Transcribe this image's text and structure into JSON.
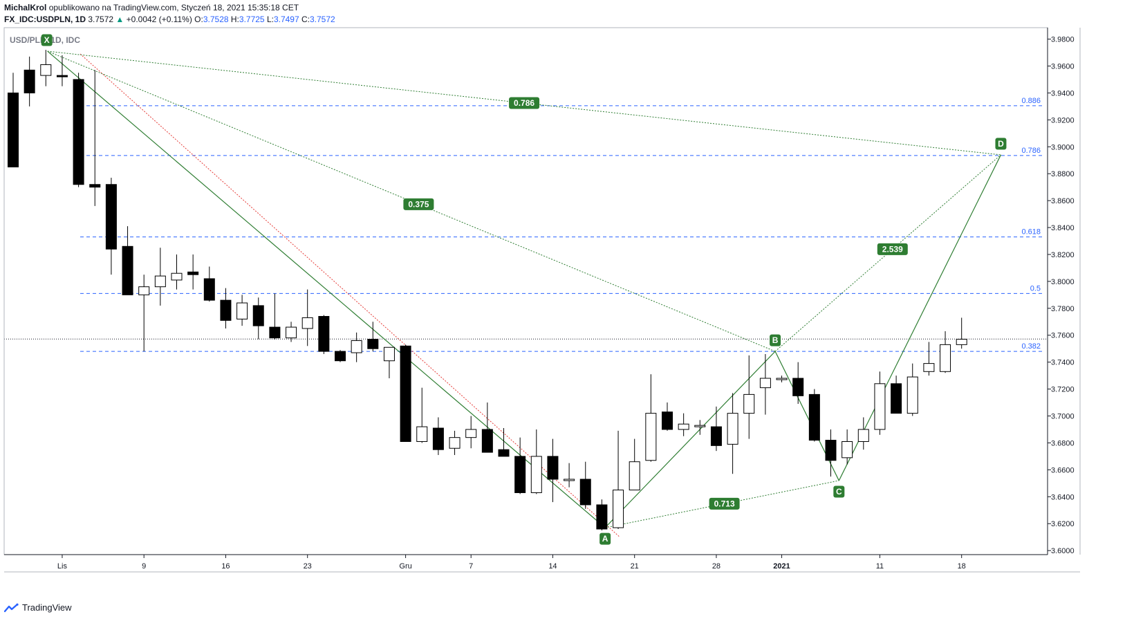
{
  "header": {
    "author": "MichalKrol",
    "published_on": "opublikowano na TradingView.com, Styczeń 18, 2021 15:35:18 CET",
    "symbol": "FX_IDC:USDPLN, 1D",
    "last": "3.7572",
    "change": "+0.0042 (+0.11%)",
    "o_label": "O:",
    "o": "3.7528",
    "h_label": "H:",
    "h": "3.7725",
    "l_label": "L:",
    "l": "3.7497",
    "c_label": "C:",
    "c": "3.7572",
    "arrow_icon": "triangle-up-icon"
  },
  "footer": {
    "brand": "TradingView",
    "logo_icon": "tradingview-logo-icon"
  },
  "colors": {
    "pattern": "#2e7d32",
    "fib": "#2962ff",
    "trend": "#e53935",
    "up_fill": "#ffffff",
    "down_fill": "#000000",
    "axis_text": "#131722"
  },
  "chart_data": {
    "type": "candlestick",
    "title": "USD/PLN, 1D, IDC",
    "ylim": [
      3.597,
      3.9885
    ],
    "y_ticks": [
      "3.9800",
      "3.9600",
      "3.9400",
      "3.9200",
      "3.9000",
      "3.8800",
      "3.8600",
      "3.8400",
      "3.8200",
      "3.8000",
      "3.7800",
      "3.7600",
      "3.7400",
      "3.7200",
      "3.7000",
      "3.6800",
      "3.6600",
      "3.6400",
      "3.6200",
      "3.6000"
    ],
    "x_ticks": [
      {
        "label": "Lis",
        "i": 3
      },
      {
        "label": "9",
        "i": 8
      },
      {
        "label": "16",
        "i": 13
      },
      {
        "label": "23",
        "i": 18
      },
      {
        "label": "Gru",
        "i": 24
      },
      {
        "label": "7",
        "i": 28
      },
      {
        "label": "14",
        "i": 33
      },
      {
        "label": "21",
        "i": 38
      },
      {
        "label": "28",
        "i": 43
      },
      {
        "label": "2021",
        "i": 47
      },
      {
        "label": "11",
        "i": 53
      },
      {
        "label": "18",
        "i": 58
      }
    ],
    "candles": [
      [
        3.94,
        3.955,
        3.885,
        3.885
      ],
      [
        3.957,
        3.967,
        3.93,
        3.94
      ],
      [
        3.953,
        3.972,
        3.945,
        3.961
      ],
      [
        3.953,
        3.968,
        3.945,
        3.952
      ],
      [
        3.95,
        3.955,
        3.87,
        3.872
      ],
      [
        3.872,
        3.957,
        3.856,
        3.87
      ],
      [
        3.872,
        3.877,
        3.805,
        3.824
      ],
      [
        3.826,
        3.841,
        3.79,
        3.79
      ],
      [
        3.79,
        3.805,
        3.748,
        3.796
      ],
      [
        3.796,
        3.825,
        3.782,
        3.804
      ],
      [
        3.801,
        3.82,
        3.794,
        3.806
      ],
      [
        3.807,
        3.82,
        3.794,
        3.805
      ],
      [
        3.802,
        3.811,
        3.785,
        3.786
      ],
      [
        3.786,
        3.795,
        3.765,
        3.771
      ],
      [
        3.772,
        3.79,
        3.767,
        3.784
      ],
      [
        3.782,
        3.788,
        3.757,
        3.767
      ],
      [
        3.766,
        3.791,
        3.757,
        3.758
      ],
      [
        3.758,
        3.77,
        3.755,
        3.766
      ],
      [
        3.765,
        3.794,
        3.752,
        3.773
      ],
      [
        3.774,
        3.775,
        3.746,
        3.748
      ],
      [
        3.748,
        3.749,
        3.74,
        3.741
      ],
      [
        3.747,
        3.762,
        3.74,
        3.756
      ],
      [
        3.757,
        3.77,
        3.748,
        3.75
      ],
      [
        3.741,
        3.751,
        3.728,
        3.751
      ],
      [
        3.752,
        3.753,
        3.681,
        3.681
      ],
      [
        3.681,
        3.721,
        3.68,
        3.692
      ],
      [
        3.691,
        3.699,
        3.671,
        3.675
      ],
      [
        3.676,
        3.689,
        3.671,
        3.684
      ],
      [
        3.684,
        3.7,
        3.676,
        3.69
      ],
      [
        3.69,
        3.71,
        3.674,
        3.673
      ],
      [
        3.675,
        3.691,
        3.67,
        3.67
      ],
      [
        3.67,
        3.684,
        3.642,
        3.643
      ],
      [
        3.643,
        3.69,
        3.642,
        3.67
      ],
      [
        3.67,
        3.683,
        3.636,
        3.653
      ],
      [
        3.653,
        3.665,
        3.647,
        3.653
      ],
      [
        3.653,
        3.666,
        3.631,
        3.634
      ],
      [
        3.634,
        3.638,
        3.615,
        3.616
      ],
      [
        3.617,
        3.689,
        3.616,
        3.645
      ],
      [
        3.645,
        3.683,
        3.645,
        3.666
      ],
      [
        3.667,
        3.731,
        3.666,
        3.702
      ],
      [
        3.703,
        3.71,
        3.689,
        3.69
      ],
      [
        3.69,
        3.702,
        3.685,
        3.694
      ],
      [
        3.692,
        3.697,
        3.686,
        3.693
      ],
      [
        3.692,
        3.707,
        3.674,
        3.678
      ],
      [
        3.679,
        3.717,
        3.657,
        3.702
      ],
      [
        3.702,
        3.745,
        3.683,
        3.716
      ],
      [
        3.721,
        3.746,
        3.701,
        3.728
      ],
      [
        3.728,
        3.73,
        3.725,
        3.728
      ],
      [
        3.728,
        3.74,
        3.709,
        3.715
      ],
      [
        3.716,
        3.72,
        3.681,
        3.682
      ],
      [
        3.682,
        3.69,
        3.655,
        3.667
      ],
      [
        3.669,
        3.69,
        3.664,
        3.681
      ],
      [
        3.681,
        3.699,
        3.675,
        3.69
      ],
      [
        3.69,
        3.733,
        3.686,
        3.724
      ],
      [
        3.724,
        3.73,
        3.702,
        3.702
      ],
      [
        3.702,
        3.739,
        3.7,
        3.729
      ],
      [
        3.733,
        3.755,
        3.73,
        3.739
      ],
      [
        3.733,
        3.763,
        3.732,
        3.753
      ],
      [
        3.753,
        3.773,
        3.75,
        3.757
      ]
    ],
    "last_price": 3.7572,
    "fib_levels": [
      {
        "label": "0.886",
        "value": 3.9305
      },
      {
        "label": "0.786",
        "value": 3.8935
      },
      {
        "label": "0.618",
        "value": 3.833
      },
      {
        "label": "0.5",
        "value": 3.791
      },
      {
        "label": "0.382",
        "value": 3.748
      }
    ],
    "pattern_points": [
      {
        "label": "X",
        "i": 2.1,
        "price": 3.971
      },
      {
        "label": "A",
        "i": 36.2,
        "price": 3.617
      },
      {
        "label": "B",
        "i": 46.6,
        "price": 3.748
      },
      {
        "label": "C",
        "i": 50.5,
        "price": 3.652
      },
      {
        "label": "D",
        "i": 60.4,
        "price": 3.894
      }
    ],
    "ratios": [
      {
        "label": "0.786",
        "from": "X",
        "to": "D",
        "t": 0.5
      },
      {
        "label": "0.375",
        "from": "X",
        "to": "B",
        "t": 0.51
      },
      {
        "label": "2.539",
        "from": "B",
        "to": "D",
        "t": 0.52
      },
      {
        "label": "0.713",
        "from": "A",
        "to": "C",
        "t": 0.51
      }
    ],
    "trendline": {
      "from": {
        "i": 4.1,
        "price": 3.969
      },
      "to": {
        "i": 37.1,
        "price": 3.61
      }
    }
  }
}
